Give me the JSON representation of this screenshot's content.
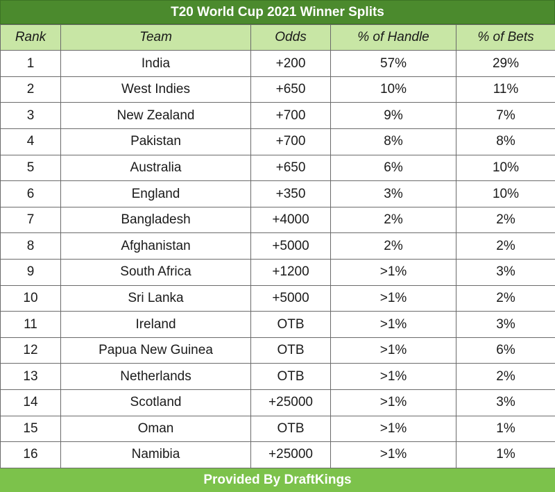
{
  "title": "T20 World Cup 2021 Winner Splits",
  "columns": [
    "Rank",
    "Team",
    "Odds",
    "% of Handle",
    "% of Bets"
  ],
  "rows": [
    {
      "rank": "1",
      "team": "India",
      "odds": "+200",
      "handle": "57%",
      "bets": "29%"
    },
    {
      "rank": "2",
      "team": "West Indies",
      "odds": "+650",
      "handle": "10%",
      "bets": "11%"
    },
    {
      "rank": "3",
      "team": "New Zealand",
      "odds": "+700",
      "handle": "9%",
      "bets": "7%"
    },
    {
      "rank": "4",
      "team": "Pakistan",
      "odds": "+700",
      "handle": "8%",
      "bets": "8%"
    },
    {
      "rank": "5",
      "team": "Australia",
      "odds": "+650",
      "handle": "6%",
      "bets": "10%"
    },
    {
      "rank": "6",
      "team": "England",
      "odds": "+350",
      "handle": "3%",
      "bets": "10%"
    },
    {
      "rank": "7",
      "team": "Bangladesh",
      "odds": "+4000",
      "handle": "2%",
      "bets": "2%"
    },
    {
      "rank": "8",
      "team": "Afghanistan",
      "odds": "+5000",
      "handle": "2%",
      "bets": "2%"
    },
    {
      "rank": "9",
      "team": "South Africa",
      "odds": "+1200",
      "handle": ">1%",
      "bets": "3%"
    },
    {
      "rank": "10",
      "team": "Sri Lanka",
      "odds": "+5000",
      "handle": ">1%",
      "bets": "2%"
    },
    {
      "rank": "11",
      "team": "Ireland",
      "odds": "OTB",
      "handle": ">1%",
      "bets": "3%"
    },
    {
      "rank": "12",
      "team": "Papua New Guinea",
      "odds": "OTB",
      "handle": ">1%",
      "bets": "6%"
    },
    {
      "rank": "13",
      "team": "Netherlands",
      "odds": "OTB",
      "handle": ">1%",
      "bets": "2%"
    },
    {
      "rank": "14",
      "team": "Scotland",
      "odds": "+25000",
      "handle": ">1%",
      "bets": "3%"
    },
    {
      "rank": "15",
      "team": "Oman",
      "odds": "OTB",
      "handle": ">1%",
      "bets": "1%"
    },
    {
      "rank": "16",
      "team": "Namibia",
      "odds": "+25000",
      "handle": ">1%",
      "bets": "1%"
    }
  ],
  "footer": "Provided By DraftKings",
  "colors": {
    "title_bg": "#4b8a2d",
    "header_bg": "#c8e6a5",
    "footer_bg": "#7cc24b",
    "border": "#6a6a6a"
  }
}
